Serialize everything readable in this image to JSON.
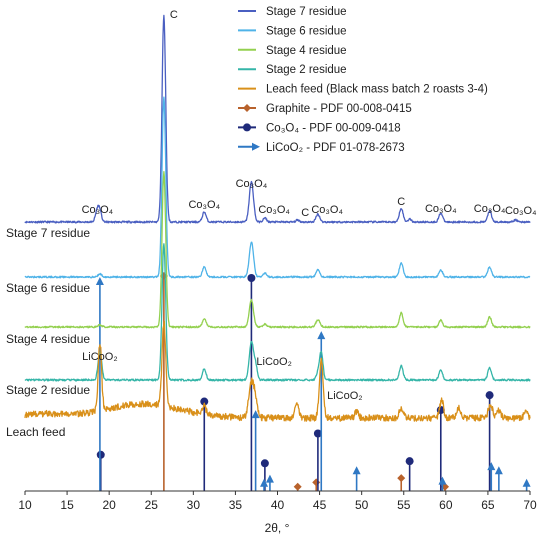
{
  "chart_data": {
    "type": "line",
    "xlabel": "2θ, °",
    "ylabel": "",
    "xlim": [
      10,
      70
    ],
    "x_ticks": [
      10,
      15,
      20,
      25,
      30,
      35,
      40,
      45,
      50,
      55,
      60,
      65,
      70
    ],
    "grid": false,
    "legend_position": "top-right",
    "series": [
      {
        "name": "Stage 7 residue",
        "label": "Stage 7 residue",
        "color": "#4a5fc1",
        "kind": "pattern"
      },
      {
        "name": "Stage 6 residue",
        "label": "Stage 6 residue",
        "color": "#4fb3e8",
        "kind": "pattern"
      },
      {
        "name": "Stage 4 residue",
        "label": "Stage 4 residue",
        "color": "#93d04f",
        "kind": "pattern"
      },
      {
        "name": "Stage 2 residue",
        "label": "Stage 2 residue",
        "color": "#35b5a8",
        "kind": "pattern"
      },
      {
        "name": "Leach feed (Black mass batch 2 roasts 3-4)",
        "label": "Leach feed",
        "color": "#d9901a",
        "kind": "pattern"
      },
      {
        "name": "Graphite - PDF 00-008-0415",
        "color": "#b8622c",
        "marker": "diamond",
        "kind": "reference",
        "peaks": [
          {
            "x": 26.5,
            "y": 100
          },
          {
            "x": 42.4,
            "y": 2
          },
          {
            "x": 44.6,
            "y": 4
          },
          {
            "x": 54.7,
            "y": 6
          },
          {
            "x": 59.9,
            "y": 2
          }
        ]
      },
      {
        "name": "Co₃O₄ - PDF 00-009-0418",
        "color": "#1f2a7a",
        "marker": "circle",
        "kind": "reference",
        "peaks": [
          {
            "x": 19.0,
            "y": 17
          },
          {
            "x": 31.3,
            "y": 42
          },
          {
            "x": 36.9,
            "y": 100
          },
          {
            "x": 38.5,
            "y": 13
          },
          {
            "x": 44.8,
            "y": 27
          },
          {
            "x": 55.7,
            "y": 14
          },
          {
            "x": 59.4,
            "y": 38
          },
          {
            "x": 65.2,
            "y": 45
          }
        ]
      },
      {
        "name": "LiCoO₂ - PDF 01-078-2673",
        "color": "#2f78c4",
        "marker": "arrow",
        "kind": "reference",
        "peaks": [
          {
            "x": 18.9,
            "y": 100
          },
          {
            "x": 37.4,
            "y": 36
          },
          {
            "x": 38.4,
            "y": 3
          },
          {
            "x": 39.1,
            "y": 5
          },
          {
            "x": 45.2,
            "y": 74
          },
          {
            "x": 49.4,
            "y": 9
          },
          {
            "x": 59.6,
            "y": 4
          },
          {
            "x": 65.4,
            "y": 11
          },
          {
            "x": 66.3,
            "y": 9
          },
          {
            "x": 69.6,
            "y": 3
          }
        ]
      }
    ],
    "annotations": [
      {
        "text": "C",
        "x": 26.5,
        "trace": "Stage 7 residue"
      },
      {
        "text": "Co₃O₄",
        "x": 18.6,
        "trace": "Stage 7 residue"
      },
      {
        "text": "Co₃O₄",
        "x": 31.3,
        "trace": "Stage 7 residue"
      },
      {
        "text": "Co₃O₄",
        "x": 36.9,
        "trace": "Stage 7 residue"
      },
      {
        "text": "Co₃O₄",
        "x": 39.6,
        "trace": "Stage 7 residue"
      },
      {
        "text": "C",
        "x": 43.3,
        "trace": "Stage 7 residue"
      },
      {
        "text": "Co₃O₄",
        "x": 45.9,
        "trace": "Stage 7 residue"
      },
      {
        "text": "C",
        "x": 54.7,
        "trace": "Stage 7 residue"
      },
      {
        "text": "Co₃O₄",
        "x": 59.4,
        "trace": "Stage 7 residue"
      },
      {
        "text": "Co₃O₄",
        "x": 65.2,
        "trace": "Stage 7 residue"
      },
      {
        "text": "Co₃O₄",
        "x": 68.9,
        "trace": "Stage 7 residue"
      },
      {
        "text": "LiCoO₂",
        "x": 18.9,
        "trace": "Stage 2 residue"
      },
      {
        "text": "LiCoO₂",
        "x": 39.6,
        "trace": "Stage 2 residue"
      },
      {
        "text": "LiCoO₂",
        "x": 48.0,
        "trace": "Leach feed"
      }
    ]
  }
}
